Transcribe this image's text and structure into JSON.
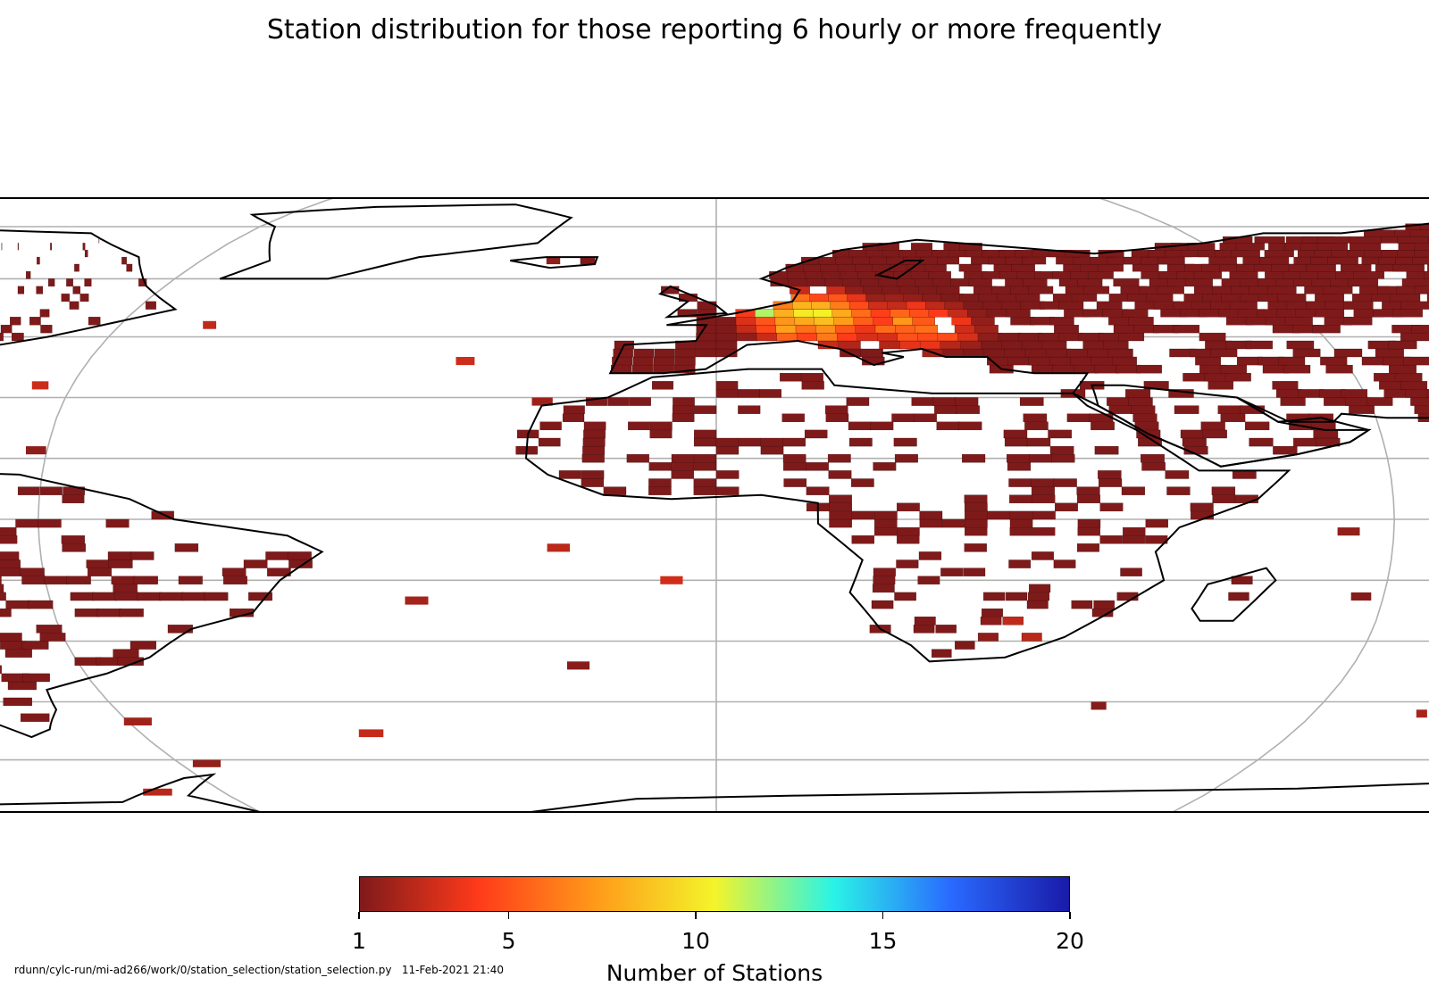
{
  "title": "Station distribution for those reporting 6 hourly or more frequently",
  "colorbar": {
    "label": "Number of Stations",
    "min": 1,
    "max": 20,
    "ticks": [
      {
        "value": 1,
        "label": "1"
      },
      {
        "value": 5,
        "label": "5"
      },
      {
        "value": 10,
        "label": "10"
      },
      {
        "value": 15,
        "label": "15"
      },
      {
        "value": 20,
        "label": "20"
      }
    ],
    "colormap": [
      "#7f1a1a",
      "#ff3a1a",
      "#ff9a1a",
      "#f4f42a",
      "#2af4e6",
      "#2a6aff",
      "#1a1aa8"
    ]
  },
  "footer": "rdunn/cylc-run/mi-ad266/work/0/station_selection/station_selection.py   11-Feb-2021 21:40",
  "map": {
    "projection": "Robinson",
    "graticule_color": "#b0b0b0",
    "coastline_color": "#000000"
  }
}
